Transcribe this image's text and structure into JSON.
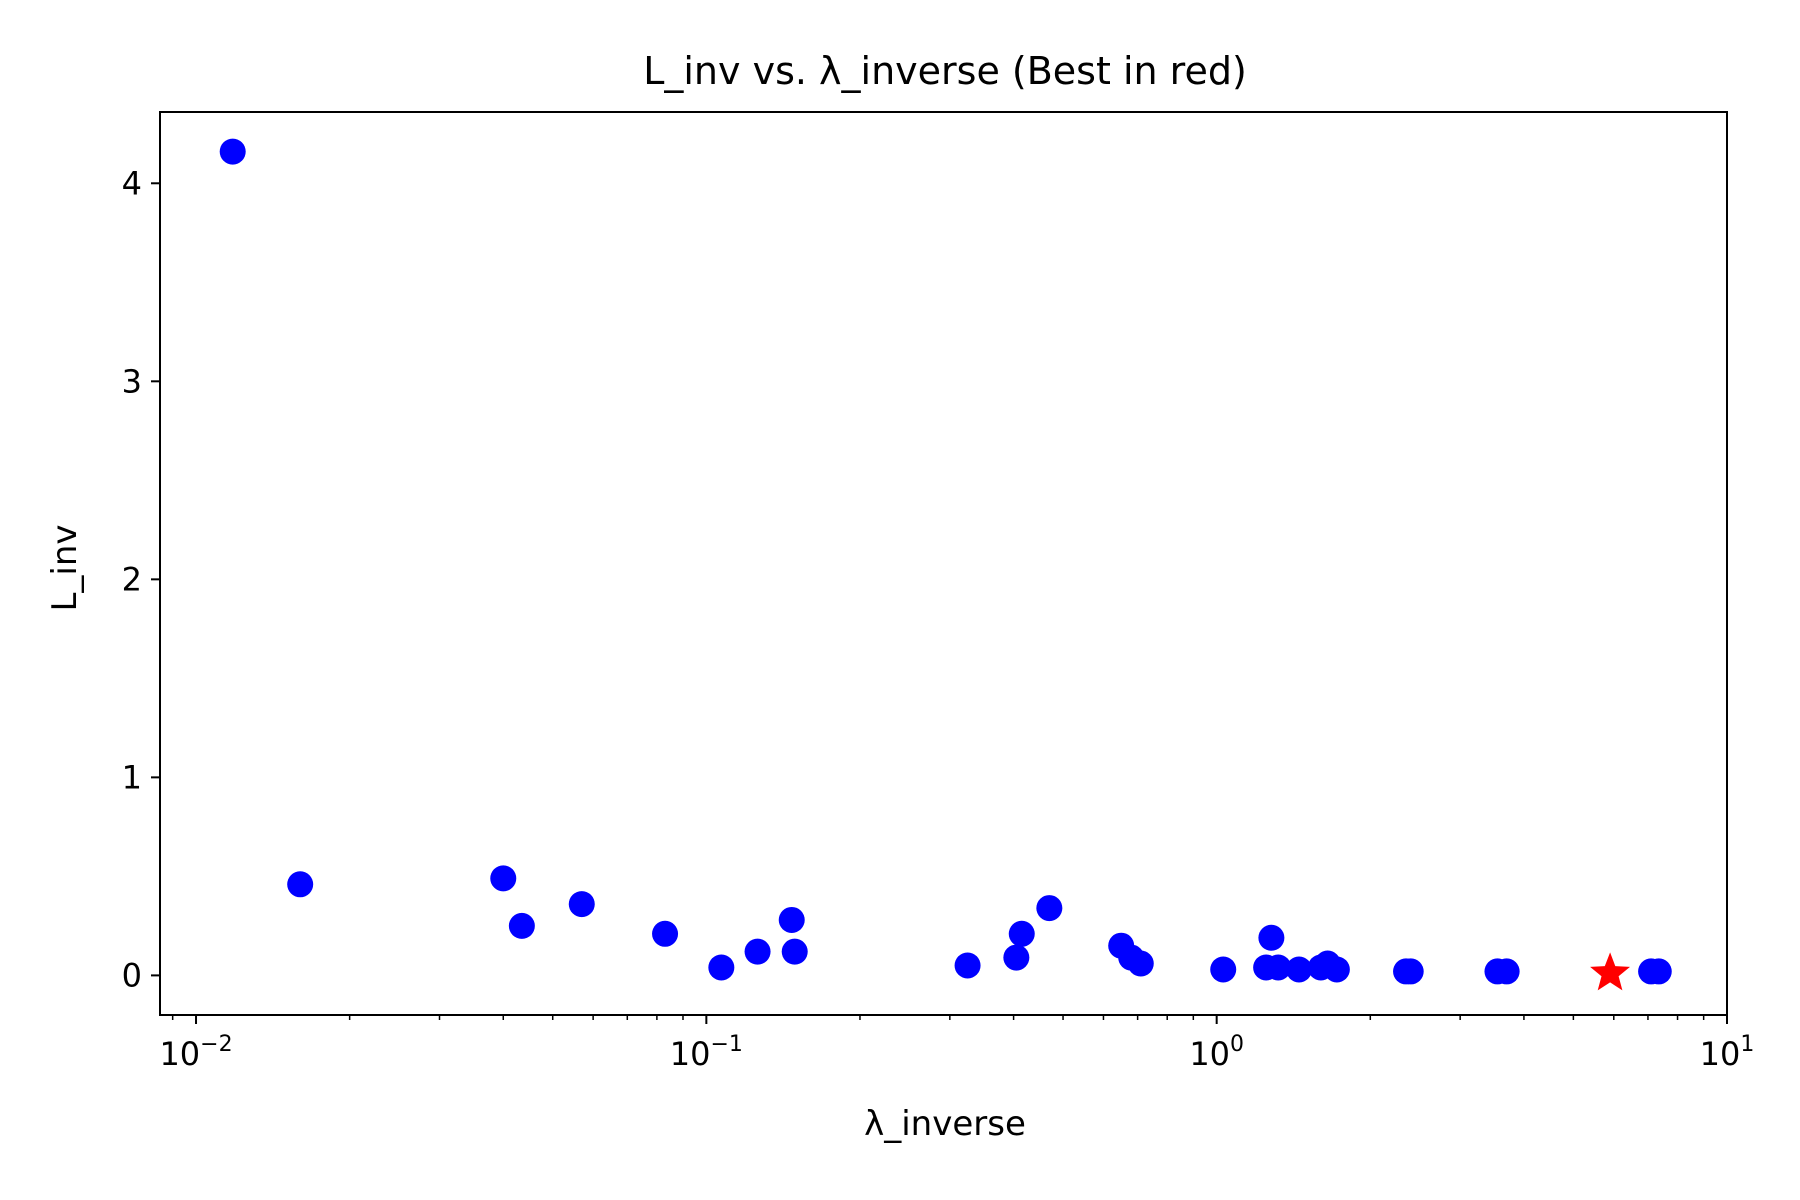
{
  "chart_data": {
    "type": "scatter",
    "title": "L_inv vs. λ_inverse (Best in red)",
    "xlabel": "λ_inverse",
    "ylabel": "L_inv",
    "xscale": "log",
    "xlim": [
      0.0085,
      10
    ],
    "ylim": [
      -0.2,
      4.36
    ],
    "grid": false,
    "legend": "none",
    "x_ticks": [
      {
        "value": 0.01,
        "base": "10",
        "exp": "−2"
      },
      {
        "value": 0.1,
        "base": "10",
        "exp": "−1"
      },
      {
        "value": 1,
        "base": "10",
        "exp": "0"
      },
      {
        "value": 10,
        "base": "10",
        "exp": "1"
      }
    ],
    "y_ticks": [
      {
        "value": 0,
        "label": "0"
      },
      {
        "value": 1,
        "label": "1"
      },
      {
        "value": 2,
        "label": "2"
      },
      {
        "value": 3,
        "label": "3"
      },
      {
        "value": 4,
        "label": "4"
      }
    ],
    "series": [
      {
        "color": "#0000ff",
        "marker": "circle",
        "points": [
          {
            "x": 0.0118,
            "y": 4.16
          },
          {
            "x": 0.016,
            "y": 0.46
          },
          {
            "x": 0.04,
            "y": 0.49
          },
          {
            "x": 0.0435,
            "y": 0.25
          },
          {
            "x": 0.057,
            "y": 0.36
          },
          {
            "x": 0.083,
            "y": 0.21
          },
          {
            "x": 0.107,
            "y": 0.04
          },
          {
            "x": 0.126,
            "y": 0.12
          },
          {
            "x": 0.147,
            "y": 0.28
          },
          {
            "x": 0.149,
            "y": 0.12
          },
          {
            "x": 0.325,
            "y": 0.05
          },
          {
            "x": 0.405,
            "y": 0.09
          },
          {
            "x": 0.415,
            "y": 0.21
          },
          {
            "x": 0.47,
            "y": 0.34
          },
          {
            "x": 0.65,
            "y": 0.15
          },
          {
            "x": 0.68,
            "y": 0.09
          },
          {
            "x": 0.71,
            "y": 0.06
          },
          {
            "x": 1.03,
            "y": 0.03
          },
          {
            "x": 1.25,
            "y": 0.04
          },
          {
            "x": 1.28,
            "y": 0.19
          },
          {
            "x": 1.32,
            "y": 0.04
          },
          {
            "x": 1.45,
            "y": 0.03
          },
          {
            "x": 1.6,
            "y": 0.04
          },
          {
            "x": 1.65,
            "y": 0.06
          },
          {
            "x": 1.72,
            "y": 0.03
          },
          {
            "x": 2.35,
            "y": 0.02
          },
          {
            "x": 2.4,
            "y": 0.02
          },
          {
            "x": 3.55,
            "y": 0.02
          },
          {
            "x": 3.7,
            "y": 0.02
          },
          {
            "x": 7.1,
            "y": 0.02
          },
          {
            "x": 7.35,
            "y": 0.02
          }
        ]
      },
      {
        "color": "#ff0000",
        "marker": "star",
        "points": [
          {
            "x": 5.9,
            "y": 0.01
          }
        ]
      }
    ]
  }
}
